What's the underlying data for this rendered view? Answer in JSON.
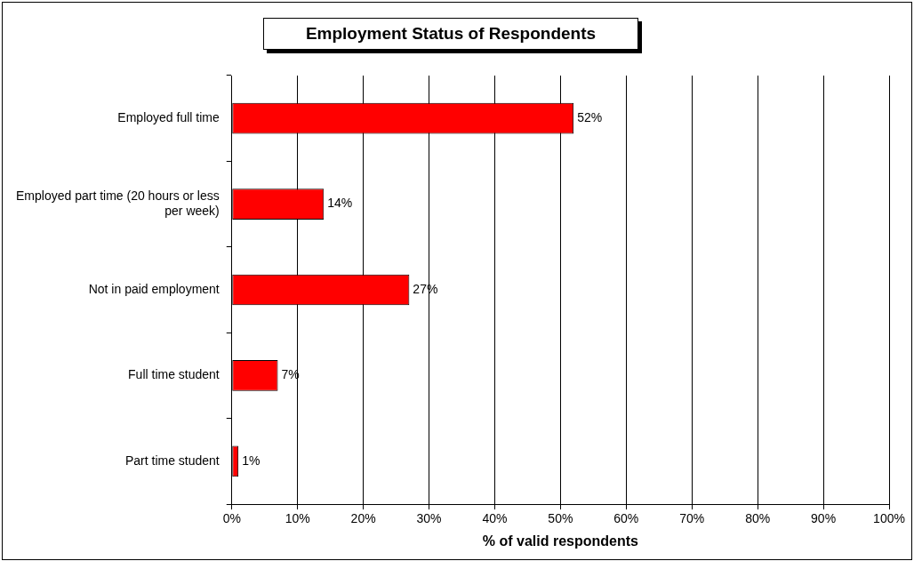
{
  "chart_data": {
    "type": "bar",
    "orientation": "horizontal",
    "title": "Employment Status of Respondents",
    "xlabel": "% of valid respondents",
    "categories": [
      "Employed full time",
      "Employed part time (20 hours or less per week)",
      "Not in paid employment",
      "Full time student",
      "Part time student"
    ],
    "values": [
      52,
      14,
      27,
      7,
      1
    ],
    "value_labels": [
      "52%",
      "14%",
      "27%",
      "7%",
      "1%"
    ],
    "color": "#ff0000",
    "xlim": [
      0,
      100
    ],
    "xticks": [
      {
        "value": 0,
        "label": "0%"
      },
      {
        "value": 10,
        "label": "10%"
      },
      {
        "value": 20,
        "label": "20%"
      },
      {
        "value": 30,
        "label": "30%"
      },
      {
        "value": 40,
        "label": "40%"
      },
      {
        "value": 50,
        "label": "50%"
      },
      {
        "value": 60,
        "label": "60%"
      },
      {
        "value": 70,
        "label": "70%"
      },
      {
        "value": 80,
        "label": "80%"
      },
      {
        "value": 90,
        "label": "90%"
      },
      {
        "value": 100,
        "label": "100%"
      }
    ],
    "grid": "x",
    "legend": false
  }
}
